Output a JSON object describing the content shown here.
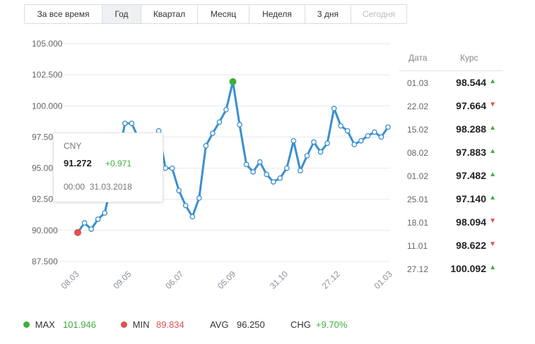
{
  "tabs": [
    {
      "label": "За все время",
      "state": "normal"
    },
    {
      "label": "Год",
      "state": "active"
    },
    {
      "label": "Квартал",
      "state": "normal"
    },
    {
      "label": "Месяц",
      "state": "normal"
    },
    {
      "label": "Неделя",
      "state": "normal"
    },
    {
      "label": "3 дня",
      "state": "normal"
    },
    {
      "label": "Сегодня",
      "state": "disabled"
    }
  ],
  "chart_data": {
    "type": "line",
    "x_ticks": [
      "08.03",
      "09.05",
      "06.07",
      "05.09",
      "31.10",
      "27.12",
      "01.03"
    ],
    "y_ticks": [
      "105.000",
      "102.500",
      "100.000",
      "97.500",
      "95.000",
      "92.500",
      "90.000",
      "87.500"
    ],
    "ylim": [
      87.5,
      105
    ],
    "series": [
      {
        "values": [
          89.83,
          90.6,
          90.1,
          90.9,
          91.4,
          93.8,
          95.9,
          98.6,
          98.6,
          97.4,
          97.2,
          97.2,
          98,
          95,
          95,
          93.2,
          92,
          91.1,
          92.6,
          96.8,
          97.8,
          98.7,
          99.7,
          101.95,
          98.5,
          95.3,
          94.7,
          95.5,
          94.5,
          93.9,
          94.2,
          95,
          97.2,
          94.8,
          96,
          97.1,
          96.3,
          97,
          99.8,
          98.4,
          98,
          96.9,
          97.2,
          97.6,
          97.9,
          97.5,
          98.3
        ]
      }
    ],
    "max_marker_value": 101.946,
    "min_marker_value": 89.834,
    "line_color": "#3a8fd0",
    "max_color": "#3bb13b",
    "min_color": "#e05050",
    "grid": "horizontal"
  },
  "tooltip": {
    "currency": "CNY",
    "value": "91.272",
    "change": "+0.971",
    "time": "00:00",
    "date": "31.03.2018"
  },
  "rate_table": {
    "header_date": "Дата",
    "header_rate": "Курс",
    "rows": [
      {
        "date": "01.03",
        "rate": "98.544",
        "dir": "up"
      },
      {
        "date": "22.02",
        "rate": "97.664",
        "dir": "down"
      },
      {
        "date": "15.02",
        "rate": "98.288",
        "dir": "up"
      },
      {
        "date": "08.02",
        "rate": "97.883",
        "dir": "up"
      },
      {
        "date": "01.02",
        "rate": "97.482",
        "dir": "up"
      },
      {
        "date": "25.01",
        "rate": "97.140",
        "dir": "up"
      },
      {
        "date": "18.01",
        "rate": "98.094",
        "dir": "down"
      },
      {
        "date": "11.01",
        "rate": "98.622",
        "dir": "down"
      },
      {
        "date": "27.12",
        "rate": "100.092",
        "dir": "up"
      }
    ]
  },
  "stats": {
    "max_label": "MAX",
    "max_value": "101.946",
    "min_label": "MIN",
    "min_value": "89.834",
    "avg_label": "AVG",
    "avg_value": "96.250",
    "chg_label": "CHG",
    "chg_value": "+9.70%"
  },
  "colors": {
    "up": "#3bb13b",
    "down": "#e05050",
    "accent": "#3a8fd0"
  }
}
